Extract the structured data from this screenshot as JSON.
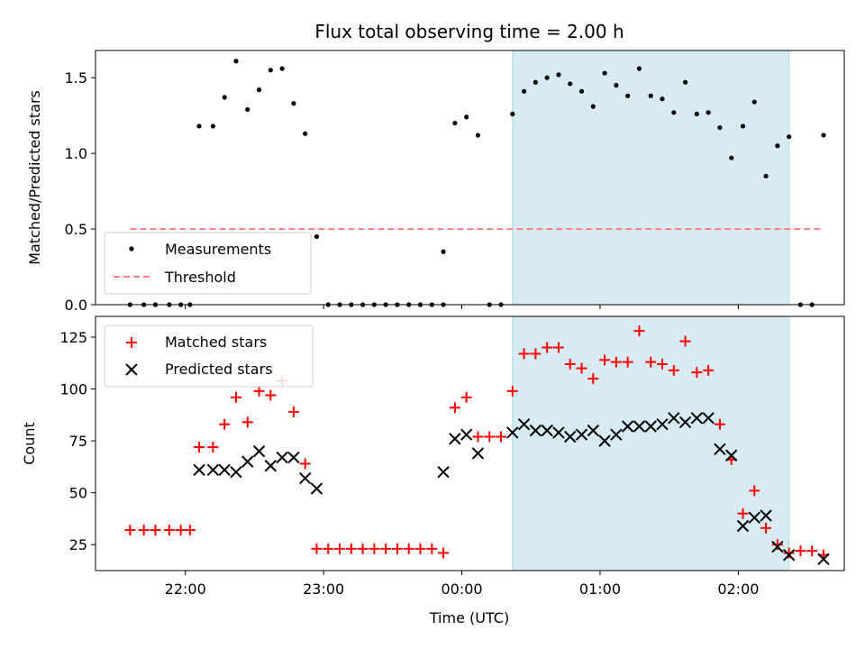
{
  "chart_data": {
    "title": "Flux total observing time = 2.00 h",
    "xlabel": "Time (UTC)",
    "x_unit": "UTC time (HH:MM) across midnight",
    "x_ticks": [
      "22:00",
      "23:00",
      "00:00",
      "01:00",
      "02:00"
    ],
    "shaded_interval": {
      "start": "00:22",
      "end": "02:22",
      "color": "#add8e6"
    },
    "panels": [
      {
        "type": "scatter",
        "ylabel": "Matched/Predicted stars",
        "ylim": [
          0,
          1.68
        ],
        "yticks": [
          "0.0",
          "0.5",
          "1.0",
          "1.5"
        ],
        "legend_position": "lower-left",
        "series": [
          {
            "name": "Measurements",
            "marker": "dot",
            "color": "#000000",
            "points": [
              [
                "21:36",
                0
              ],
              [
                "21:42",
                0
              ],
              [
                "21:47",
                0
              ],
              [
                "21:53",
                0
              ],
              [
                "21:58",
                0
              ],
              [
                "22:02",
                0
              ],
              [
                "22:06",
                1.18
              ],
              [
                "22:12",
                1.18
              ],
              [
                "22:17",
                1.37
              ],
              [
                "22:22",
                1.61
              ],
              [
                "22:27",
                1.29
              ],
              [
                "22:32",
                1.42
              ],
              [
                "22:37",
                1.55
              ],
              [
                "22:42",
                1.56
              ],
              [
                "22:47",
                1.33
              ],
              [
                "22:52",
                1.13
              ],
              [
                "22:57",
                0.45
              ],
              [
                "23:02",
                0
              ],
              [
                "23:07",
                0
              ],
              [
                "23:12",
                0
              ],
              [
                "23:17",
                0
              ],
              [
                "23:22",
                0
              ],
              [
                "23:27",
                0
              ],
              [
                "23:32",
                0
              ],
              [
                "23:37",
                0
              ],
              [
                "23:42",
                0
              ],
              [
                "23:47",
                0
              ],
              [
                "23:52",
                0
              ],
              [
                "23:52",
                0.35
              ],
              [
                "23:57",
                1.2
              ],
              [
                "00:02",
                1.24
              ],
              [
                "00:07",
                1.12
              ],
              [
                "00:12",
                0
              ],
              [
                "00:17",
                0
              ],
              [
                "00:22",
                1.26
              ],
              [
                "00:27",
                1.41
              ],
              [
                "00:32",
                1.47
              ],
              [
                "00:37",
                1.5
              ],
              [
                "00:42",
                1.52
              ],
              [
                "00:47",
                1.46
              ],
              [
                "00:52",
                1.41
              ],
              [
                "00:57",
                1.31
              ],
              [
                "01:02",
                1.53
              ],
              [
                "01:07",
                1.45
              ],
              [
                "01:12",
                1.38
              ],
              [
                "01:17",
                1.56
              ],
              [
                "01:22",
                1.38
              ],
              [
                "01:27",
                1.36
              ],
              [
                "01:32",
                1.27
              ],
              [
                "01:37",
                1.47
              ],
              [
                "01:42",
                1.26
              ],
              [
                "01:47",
                1.27
              ],
              [
                "01:52",
                1.17
              ],
              [
                "01:57",
                0.97
              ],
              [
                "02:02",
                1.18
              ],
              [
                "02:07",
                1.34
              ],
              [
                "02:12",
                0.85
              ],
              [
                "02:17",
                1.05
              ],
              [
                "02:22",
                1.11
              ],
              [
                "02:27",
                0
              ],
              [
                "02:32",
                0
              ],
              [
                "02:37",
                1.12
              ]
            ]
          },
          {
            "name": "Threshold",
            "marker": "dashed-line",
            "color": "#ff8080",
            "points": [
              [
                "21:36",
                0.5
              ],
              [
                "02:37",
                0.5
              ]
            ]
          }
        ]
      },
      {
        "type": "scatter",
        "ylabel": "Count",
        "ylim": [
          12.5,
          135
        ],
        "yticks": [
          "25",
          "50",
          "75",
          "100",
          "125"
        ],
        "legend_position": "upper-left",
        "series": [
          {
            "name": "Matched stars",
            "marker": "plus",
            "color": "#ff0000",
            "points": [
              [
                "21:36",
                32
              ],
              [
                "21:42",
                32
              ],
              [
                "21:47",
                32
              ],
              [
                "21:53",
                32
              ],
              [
                "21:58",
                32
              ],
              [
                "22:02",
                32
              ],
              [
                "22:06",
                72
              ],
              [
                "22:12",
                72
              ],
              [
                "22:17",
                83
              ],
              [
                "22:22",
                96
              ],
              [
                "22:27",
                84
              ],
              [
                "22:32",
                99
              ],
              [
                "22:37",
                97
              ],
              [
                "22:42",
                104
              ],
              [
                "22:47",
                89
              ],
              [
                "22:52",
                64
              ],
              [
                "22:57",
                23
              ],
              [
                "23:02",
                23
              ],
              [
                "23:07",
                23
              ],
              [
                "23:12",
                23
              ],
              [
                "23:17",
                23
              ],
              [
                "23:22",
                23
              ],
              [
                "23:27",
                23
              ],
              [
                "23:32",
                23
              ],
              [
                "23:37",
                23
              ],
              [
                "23:42",
                23
              ],
              [
                "23:47",
                23
              ],
              [
                "23:52",
                21
              ],
              [
                "23:57",
                91
              ],
              [
                "00:02",
                96
              ],
              [
                "00:07",
                77
              ],
              [
                "00:12",
                77
              ],
              [
                "00:17",
                77
              ],
              [
                "00:22",
                99
              ],
              [
                "00:27",
                117
              ],
              [
                "00:32",
                117
              ],
              [
                "00:37",
                120
              ],
              [
                "00:42",
                120
              ],
              [
                "00:47",
                112
              ],
              [
                "00:52",
                110
              ],
              [
                "00:57",
                105
              ],
              [
                "01:02",
                114
              ],
              [
                "01:07",
                113
              ],
              [
                "01:12",
                113
              ],
              [
                "01:17",
                128
              ],
              [
                "01:22",
                113
              ],
              [
                "01:27",
                112
              ],
              [
                "01:32",
                109
              ],
              [
                "01:37",
                123
              ],
              [
                "01:42",
                108
              ],
              [
                "01:47",
                109
              ],
              [
                "01:52",
                83
              ],
              [
                "01:57",
                66
              ],
              [
                "02:02",
                40
              ],
              [
                "02:07",
                51
              ],
              [
                "02:12",
                33
              ],
              [
                "02:17",
                25
              ],
              [
                "02:22",
                21
              ],
              [
                "02:27",
                22
              ],
              [
                "02:32",
                22
              ],
              [
                "02:37",
                20
              ]
            ]
          },
          {
            "name": "Predicted stars",
            "marker": "x",
            "color": "#000000",
            "points": [
              [
                "22:06",
                61
              ],
              [
                "22:12",
                61
              ],
              [
                "22:17",
                61
              ],
              [
                "22:22",
                60
              ],
              [
                "22:27",
                65
              ],
              [
                "22:32",
                70
              ],
              [
                "22:37",
                63
              ],
              [
                "22:42",
                67
              ],
              [
                "22:47",
                67
              ],
              [
                "22:52",
                57
              ],
              [
                "22:57",
                52
              ],
              [
                "23:52",
                60
              ],
              [
                "23:57",
                76
              ],
              [
                "00:02",
                78
              ],
              [
                "00:07",
                69
              ],
              [
                "00:22",
                79
              ],
              [
                "00:27",
                83
              ],
              [
                "00:32",
                80
              ],
              [
                "00:37",
                80
              ],
              [
                "00:42",
                79
              ],
              [
                "00:47",
                77
              ],
              [
                "00:52",
                78
              ],
              [
                "00:57",
                80
              ],
              [
                "01:02",
                75
              ],
              [
                "01:07",
                78
              ],
              [
                "01:12",
                82
              ],
              [
                "01:17",
                82
              ],
              [
                "01:22",
                82
              ],
              [
                "01:27",
                83
              ],
              [
                "01:32",
                86
              ],
              [
                "01:37",
                84
              ],
              [
                "01:42",
                86
              ],
              [
                "01:47",
                86
              ],
              [
                "01:52",
                71
              ],
              [
                "01:57",
                68
              ],
              [
                "02:02",
                34
              ],
              [
                "02:07",
                38
              ],
              [
                "02:12",
                39
              ],
              [
                "02:17",
                24
              ],
              [
                "02:22",
                20
              ],
              [
                "02:37",
                18
              ]
            ]
          }
        ]
      }
    ]
  }
}
